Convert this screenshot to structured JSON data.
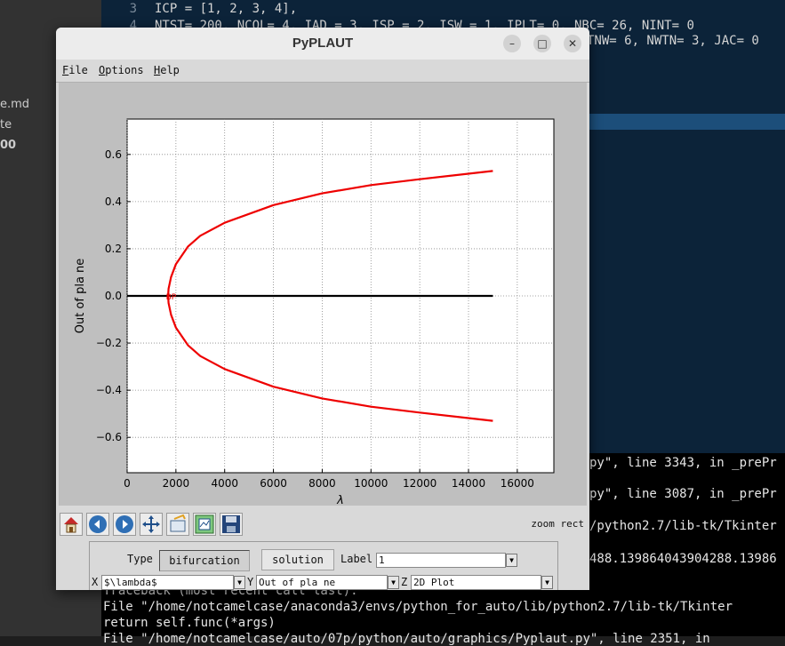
{
  "explorer": {
    "items": [
      "e.md",
      "te",
      "00"
    ]
  },
  "editor": {
    "lines": [
      {
        "num": "3",
        "text": "ICP = [1, 2, 3, 4],"
      },
      {
        "num": "4",
        "text": "NTST= 200, NCOL= 4, IAD = 3, ISP = 2, ISW = 1, IPLT= 0, NBC= 26, NINT= 0"
      },
      {
        "num": "",
        "text": "TNW= 6, NWTN= 3, JAC= 0"
      }
    ]
  },
  "terminal": {
    "lines": [
      "py\", line 3343, in _prePr",
      "py\", line 3087, in _prePr",
      "/python2.7/lib-tk/Tkinter",
      "488.139864043904288.13986",
      "Traceback (most recent call last):",
      "  File \"/home/notcamelcase/anaconda3/envs/python_for_auto/lib/python2.7/lib-tk/Tkinter",
      "    return self.func(*args)",
      "  File \"/home/notcamelcase/auto/07p/python/auto/graphics/Pyplaut.py\", line 2351, in"
    ]
  },
  "window": {
    "title": "PyPLAUT",
    "minimize_glyph": "–",
    "maximize_glyph": "□",
    "close_glyph": "✕"
  },
  "menu": {
    "file": {
      "mnemonic": "F",
      "rest": "ile"
    },
    "options": {
      "mnemonic": "O",
      "rest": "ptions"
    },
    "help": {
      "mnemonic": "H",
      "rest": "elp"
    }
  },
  "chart_data": {
    "type": "line",
    "xlabel": "λ",
    "ylabel": "Out of pla ne",
    "xlim": [
      0,
      17500
    ],
    "ylim": [
      -0.75,
      0.75
    ],
    "xticks": [
      0,
      2000,
      4000,
      6000,
      8000,
      10000,
      12000,
      14000,
      16000
    ],
    "yticks": [
      -0.6,
      -0.4,
      -0.2,
      0.0,
      0.2,
      0.4,
      0.6
    ],
    "grid": true,
    "series": [
      {
        "color": "#000000",
        "points": [
          [
            0,
            0.0
          ],
          [
            15000,
            0.0
          ]
        ]
      },
      {
        "color": "#ee0000",
        "points": [
          [
            15000,
            0.53
          ],
          [
            12000,
            0.495
          ],
          [
            10000,
            0.47
          ],
          [
            8000,
            0.435
          ],
          [
            6000,
            0.385
          ],
          [
            4000,
            0.31
          ],
          [
            3000,
            0.255
          ],
          [
            2500,
            0.21
          ],
          [
            2000,
            0.135
          ],
          [
            1800,
            0.08
          ],
          [
            1700,
            0.03
          ],
          [
            1680,
            0.0
          ],
          [
            1700,
            -0.03
          ],
          [
            1800,
            -0.08
          ],
          [
            2000,
            -0.135
          ],
          [
            2500,
            -0.21
          ],
          [
            3000,
            -0.255
          ],
          [
            4000,
            -0.31
          ],
          [
            6000,
            -0.385
          ],
          [
            8000,
            -0.435
          ],
          [
            10000,
            -0.47
          ],
          [
            12000,
            -0.495
          ],
          [
            15000,
            -0.53
          ]
        ]
      }
    ],
    "annotations": [
      {
        "x": 1700,
        "y": 0.0,
        "text": "BP"
      }
    ]
  },
  "toolbar": {
    "icons": [
      "home-icon",
      "back-arrow-icon",
      "forward-arrow-icon",
      "pan-icon",
      "configure-icon",
      "zoom-to-rect-icon",
      "save-disk-icon"
    ],
    "mode_text": "zoom rect"
  },
  "controls": {
    "type_label": "Type",
    "bifurcation_label": "bifurcation",
    "solution_label": "solution",
    "label_label": "Label",
    "label_value": "1",
    "x_label": "X",
    "x_value": "$\\lambda$",
    "y_label": "Y",
    "y_value": "Out of pla ne",
    "z_label": "Z",
    "z_value": "2D Plot",
    "dropdown_glyph": "▼"
  }
}
